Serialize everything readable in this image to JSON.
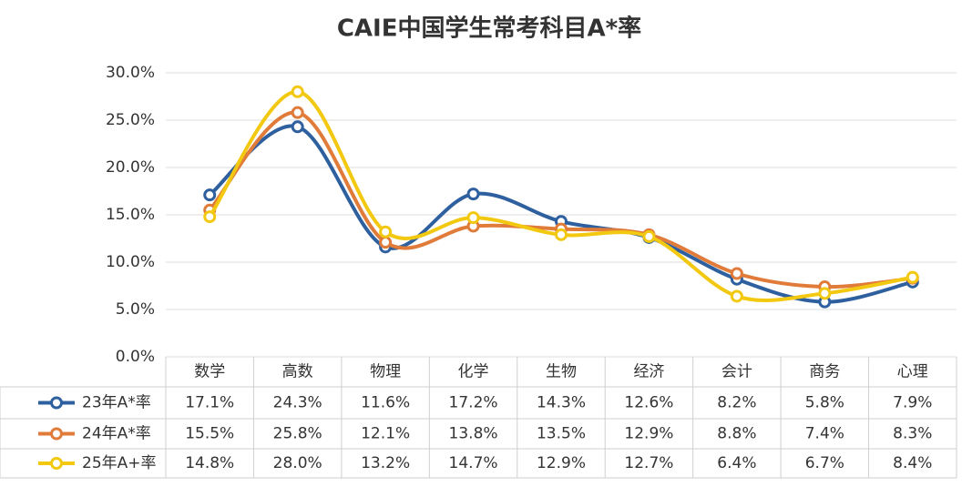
{
  "chart_data": {
    "type": "line",
    "title": "CAIE中国学生常考科目A*率",
    "categories": [
      "数学",
      "高数",
      "物理",
      "化学",
      "生物",
      "经济",
      "会计",
      "商务",
      "心理"
    ],
    "series": [
      {
        "name": "23年A*率",
        "color": "#2e5f9e",
        "values": [
          17.1,
          24.3,
          11.6,
          17.2,
          14.3,
          12.6,
          8.2,
          5.8,
          7.9
        ],
        "value_labels": [
          "17.1%",
          "24.3%",
          "11.6%",
          "17.2%",
          "14.3%",
          "12.6%",
          "8.2%",
          "5.8%",
          "7.9%"
        ]
      },
      {
        "name": "24年A*率",
        "color": "#e07b39",
        "values": [
          15.5,
          25.8,
          12.1,
          13.8,
          13.5,
          12.9,
          8.8,
          7.4,
          8.3
        ],
        "value_labels": [
          "15.5%",
          "25.8%",
          "12.1%",
          "13.8%",
          "13.5%",
          "12.9%",
          "8.8%",
          "7.4%",
          "8.3%"
        ]
      },
      {
        "name": "25年A+率",
        "color": "#f2c811",
        "values": [
          14.8,
          28.0,
          13.2,
          14.7,
          12.9,
          12.7,
          6.4,
          6.7,
          8.4
        ],
        "value_labels": [
          "14.8%",
          "28.0%",
          "13.2%",
          "14.7%",
          "12.9%",
          "12.7%",
          "6.4%",
          "6.7%",
          "8.4%"
        ]
      }
    ],
    "ylim": [
      0,
      30
    ],
    "yticks": [
      {
        "value": 0,
        "label": "0.0%"
      },
      {
        "value": 5,
        "label": "5.0%"
      },
      {
        "value": 10,
        "label": "10.0%"
      },
      {
        "value": 15,
        "label": "15.0%"
      },
      {
        "value": 20,
        "label": "20.0%"
      },
      {
        "value": 25,
        "label": "25.0%"
      },
      {
        "value": 30,
        "label": "30.0%"
      }
    ],
    "grid": true
  }
}
